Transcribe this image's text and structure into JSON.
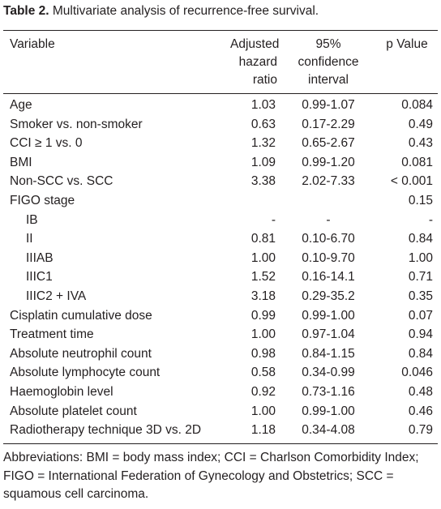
{
  "title": {
    "label": "Table 2.",
    "text": "Multivariate analysis of recurrence-free survival."
  },
  "table": {
    "header": [
      [
        "Variable"
      ],
      [
        "Adjusted",
        "hazard",
        "ratio"
      ],
      [
        "95%",
        "confidence",
        "interval"
      ],
      [
        "p Value"
      ]
    ],
    "rows": [
      [
        "Age",
        "1.03",
        "0.99-1.07",
        "0.084"
      ],
      [
        "Smoker vs. non-smoker",
        "0.63",
        "0.17-2.29",
        "0.49"
      ],
      [
        "CCI ≥ 1 vs. 0",
        "1.32",
        "0.65-2.67",
        "0.43"
      ],
      [
        "BMI",
        "1.09",
        "0.99-1.20",
        "0.081"
      ],
      [
        "Non-SCC vs. SCC",
        "3.38",
        "2.02-7.33",
        "< 0.001"
      ],
      [
        "FIGO stage",
        "",
        "",
        "0.15"
      ],
      [
        "IB",
        "-",
        "-",
        "-"
      ],
      [
        "II",
        "0.81",
        "0.10-6.70",
        "0.84"
      ],
      [
        "IIIAB",
        "1.00",
        "0.10-9.70",
        "1.00"
      ],
      [
        "IIIC1",
        "1.52",
        "0.16-14.1",
        "0.71"
      ],
      [
        "IIIC2 + IVA",
        "3.18",
        "0.29-35.2",
        "0.35"
      ],
      [
        "Cisplatin cumulative dose",
        "0.99",
        "0.99-1.00",
        "0.07"
      ],
      [
        "Treatment time",
        "1.00",
        "0.97-1.04",
        "0.94"
      ],
      [
        "Absolute neutrophil count",
        "0.98",
        "0.84-1.15",
        "0.84"
      ],
      [
        "Absolute lymphocyte count",
        "0.58",
        "0.34-0.99",
        "0.046"
      ],
      [
        "Haemoglobin level",
        "0.92",
        "0.73-1.16",
        "0.48"
      ],
      [
        "Absolute platelet count",
        "1.00",
        "0.99-1.00",
        "0.46"
      ],
      [
        "Radiotherapy technique 3D vs. 2D",
        "1.18",
        "0.34-4.08",
        "0.79"
      ]
    ]
  },
  "footnote": "Abbreviations: BMI = body mass index; CCI = Charlson Comorbidity Index; FIGO = International Federation of Gynecology and Obstetrics; SCC = squamous cell carcinoma."
}
